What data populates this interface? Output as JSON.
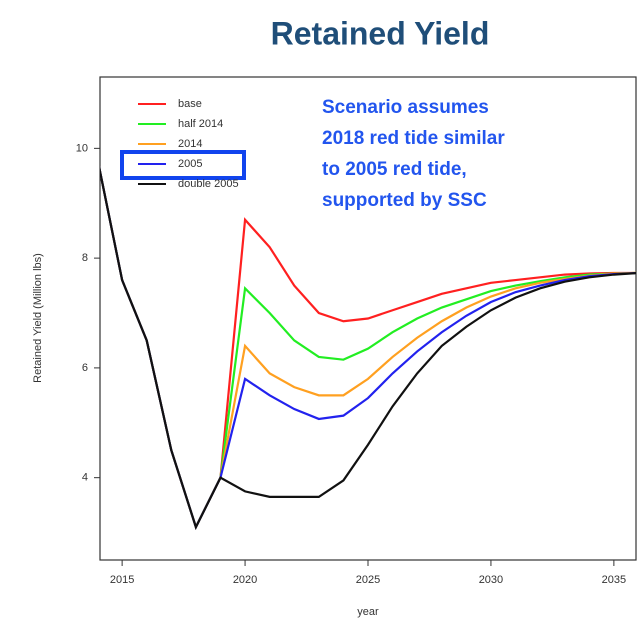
{
  "chart_data": {
    "type": "line",
    "title": "Retained Yield",
    "x_label": "year",
    "y_label": "Retained Yield (Million lbs)",
    "annotation": [
      "Scenario assumes",
      "2018 red tide similar",
      "to 2005 red tide,",
      "supported by SSC"
    ],
    "x": [
      2014,
      2015,
      2016,
      2017,
      2018,
      2019,
      2020,
      2021,
      2022,
      2023,
      2024,
      2025,
      2026,
      2027,
      2028,
      2029,
      2030,
      2031,
      2032,
      2033,
      2034,
      2035,
      2036
    ],
    "xlim": [
      2014.1,
      2035.9
    ],
    "xticks": [
      2015,
      2020,
      2025,
      2030,
      2035
    ],
    "ylim": [
      2.5,
      11.3
    ],
    "yticks": [
      4,
      6,
      8,
      10
    ],
    "legend": "top-left",
    "series": [
      {
        "name": "base",
        "color": "#ff2020",
        "values": [
          9.8,
          7.6,
          6.5,
          4.5,
          3.1,
          4.0,
          8.7,
          8.2,
          7.5,
          7.0,
          6.85,
          6.9,
          7.05,
          7.2,
          7.35,
          7.45,
          7.55,
          7.6,
          7.65,
          7.7,
          7.72,
          7.73,
          7.73
        ]
      },
      {
        "name": "half 2014",
        "color": "#22ee22",
        "values": [
          9.8,
          7.6,
          6.5,
          4.5,
          3.1,
          4.0,
          7.45,
          7.0,
          6.5,
          6.2,
          6.15,
          6.35,
          6.65,
          6.9,
          7.1,
          7.25,
          7.4,
          7.5,
          7.58,
          7.65,
          7.7,
          7.72,
          7.73
        ]
      },
      {
        "name": "2014",
        "color": "#ffa020",
        "values": [
          9.8,
          7.6,
          6.5,
          4.5,
          3.1,
          4.0,
          6.4,
          5.9,
          5.65,
          5.5,
          5.5,
          5.8,
          6.2,
          6.55,
          6.85,
          7.1,
          7.3,
          7.45,
          7.55,
          7.62,
          7.68,
          7.72,
          7.73
        ]
      },
      {
        "name": "2005",
        "color": "#2222ee",
        "values": [
          9.8,
          7.6,
          6.5,
          4.5,
          3.1,
          4.0,
          5.8,
          5.5,
          5.25,
          5.07,
          5.13,
          5.45,
          5.9,
          6.3,
          6.65,
          6.95,
          7.2,
          7.38,
          7.5,
          7.6,
          7.67,
          7.71,
          7.73
        ]
      },
      {
        "name": "double 2005",
        "color": "#111111",
        "values": [
          9.8,
          7.6,
          6.5,
          4.5,
          3.1,
          4.0,
          3.75,
          3.65,
          3.65,
          3.65,
          3.95,
          4.6,
          5.3,
          5.9,
          6.4,
          6.75,
          7.05,
          7.28,
          7.45,
          7.57,
          7.65,
          7.7,
          7.73
        ]
      }
    ]
  }
}
